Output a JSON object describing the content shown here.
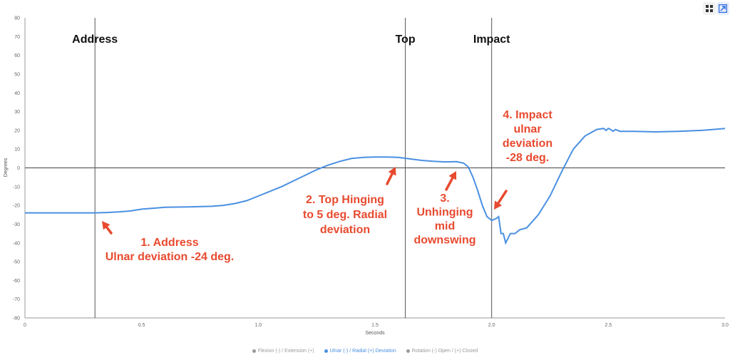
{
  "toolbar": {
    "grid_icon": "grid-view-icon",
    "expand_icon": "expand-icon"
  },
  "colors": {
    "series": "#4a90e2",
    "annotation": "#e84a2f",
    "marker": "#555555",
    "inactive": "#999999"
  },
  "chart_data": {
    "type": "line",
    "xlabel": "Seconds",
    "ylabel": "Degrees",
    "xlim": [
      0,
      3.0
    ],
    "ylim": [
      -80,
      80
    ],
    "x_ticks": [
      "0",
      "0.5",
      "1.0",
      "1.5",
      "2.0",
      "2.5",
      "3.0"
    ],
    "y_ticks": [
      "80",
      "70",
      "60",
      "50",
      "40",
      "30",
      "20",
      "10",
      "0",
      "-10",
      "-20",
      "-30",
      "-40",
      "-50",
      "-60",
      "-70",
      "-80"
    ],
    "grid": false,
    "legend_position": "bottom",
    "markers": [
      {
        "label": "Address",
        "x": 0.3
      },
      {
        "label": "Top",
        "x": 1.63
      },
      {
        "label": "Impact",
        "x": 2.0
      }
    ],
    "annotations": [
      {
        "lines": [
          "1. Address",
          "Ulnar deviation -24 deg."
        ]
      },
      {
        "lines": [
          "2. Top Hinging",
          "to 5 deg. Radial",
          "deviation"
        ]
      },
      {
        "lines": [
          "3.",
          "Unhinging",
          "mid",
          "downswing"
        ]
      },
      {
        "lines": [
          "4. Impact",
          "ulnar",
          "deviation",
          "-28 deg."
        ]
      }
    ],
    "legend": [
      {
        "name": "Flexion (-) / Extension (+)",
        "active": false
      },
      {
        "name": "Ulnar (-) / Radial (+) Deviation",
        "active": true
      },
      {
        "name": "Rotation (-) Open / (+) Closed",
        "active": false
      }
    ],
    "series": [
      {
        "name": "Ulnar (-) / Radial (+) Deviation",
        "x": [
          0,
          0.1,
          0.2,
          0.3,
          0.35,
          0.4,
          0.45,
          0.5,
          0.55,
          0.6,
          0.7,
          0.8,
          0.85,
          0.9,
          0.95,
          1.0,
          1.05,
          1.1,
          1.15,
          1.2,
          1.25,
          1.3,
          1.35,
          1.4,
          1.45,
          1.5,
          1.55,
          1.6,
          1.65,
          1.7,
          1.75,
          1.8,
          1.85,
          1.88,
          1.9,
          1.92,
          1.94,
          1.96,
          1.98,
          2.0,
          2.02,
          2.03,
          2.04,
          2.05,
          2.06,
          2.08,
          2.1,
          2.12,
          2.15,
          2.2,
          2.25,
          2.3,
          2.35,
          2.4,
          2.45,
          2.48,
          2.49,
          2.5,
          2.51,
          2.52,
          2.53,
          2.55,
          2.6,
          2.7,
          2.8,
          2.9,
          2.95,
          3.0
        ],
        "values": [
          -24,
          -24,
          -24,
          -24,
          -23.8,
          -23.5,
          -23,
          -22,
          -21.5,
          -21,
          -20.8,
          -20.5,
          -20,
          -19,
          -17.5,
          -15,
          -12.5,
          -10,
          -7,
          -4,
          -1,
          1.5,
          3.5,
          5,
          5.6,
          5.8,
          5.8,
          5.6,
          4.8,
          4,
          3.5,
          3.2,
          3.3,
          2.5,
          0.5,
          -5,
          -12,
          -20,
          -26,
          -28,
          -27,
          -26,
          -35,
          -35,
          -40,
          -35,
          -35,
          -33,
          -32,
          -25,
          -15,
          -2,
          10,
          17,
          20.5,
          21,
          20,
          21,
          20.5,
          19.5,
          20.5,
          19.5,
          19.5,
          19.2,
          19.5,
          20,
          20.5,
          21
        ]
      }
    ]
  }
}
